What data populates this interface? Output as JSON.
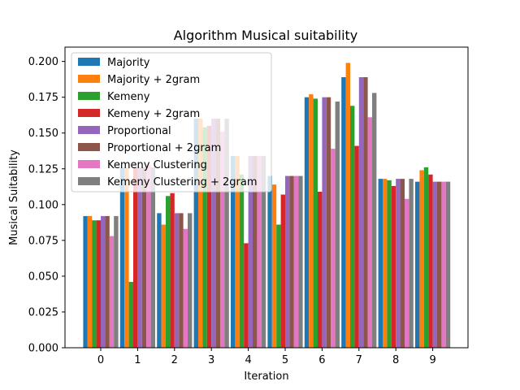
{
  "chart_data": {
    "type": "bar",
    "title": "Algorithm Musical suitability",
    "xlabel": "Iteration",
    "ylabel": "Musical Suitability",
    "categories": [
      "0",
      "1",
      "2",
      "3",
      "4",
      "5",
      "6",
      "7",
      "8",
      "9"
    ],
    "ylim": [
      0,
      0.21
    ],
    "yticks": [
      "0.000",
      "0.025",
      "0.050",
      "0.075",
      "0.100",
      "0.125",
      "0.150",
      "0.175",
      "0.200"
    ],
    "grid": false,
    "legend_position": "top-left",
    "series": [
      {
        "name": "Majority",
        "color": "#1f77b4",
        "values": [
          0.092,
          0.126,
          0.094,
          0.16,
          0.134,
          0.12,
          0.175,
          0.189,
          0.118,
          0.116
        ]
      },
      {
        "name": "Majority + 2gram",
        "color": "#ff7f0e",
        "values": [
          0.092,
          0.126,
          0.086,
          0.16,
          0.134,
          0.114,
          0.177,
          0.199,
          0.118,
          0.124
        ]
      },
      {
        "name": "Kemeny",
        "color": "#2ca02c",
        "values": [
          0.089,
          0.046,
          0.106,
          0.154,
          0.121,
          0.086,
          0.174,
          0.169,
          0.117,
          0.126
        ]
      },
      {
        "name": "Kemeny + 2gram",
        "color": "#d62728",
        "values": [
          0.089,
          0.126,
          0.108,
          0.155,
          0.073,
          0.107,
          0.109,
          0.141,
          0.113,
          0.121
        ]
      },
      {
        "name": "Proportional",
        "color": "#9467bd",
        "values": [
          0.092,
          0.126,
          0.094,
          0.16,
          0.134,
          0.12,
          0.175,
          0.189,
          0.118,
          0.116
        ]
      },
      {
        "name": "Proportional + 2gram",
        "color": "#8c564b",
        "values": [
          0.092,
          0.126,
          0.094,
          0.16,
          0.134,
          0.12,
          0.175,
          0.189,
          0.118,
          0.116
        ]
      },
      {
        "name": "Kemeny Clustering",
        "color": "#e377c2",
        "values": [
          0.078,
          0.128,
          0.083,
          0.151,
          0.134,
          0.12,
          0.139,
          0.161,
          0.104,
          0.116
        ]
      },
      {
        "name": "Kemeny Clustering + 2gram",
        "color": "#7f7f7f",
        "values": [
          0.092,
          0.126,
          0.094,
          0.16,
          0.134,
          0.12,
          0.172,
          0.178,
          0.118,
          0.116
        ]
      }
    ]
  }
}
